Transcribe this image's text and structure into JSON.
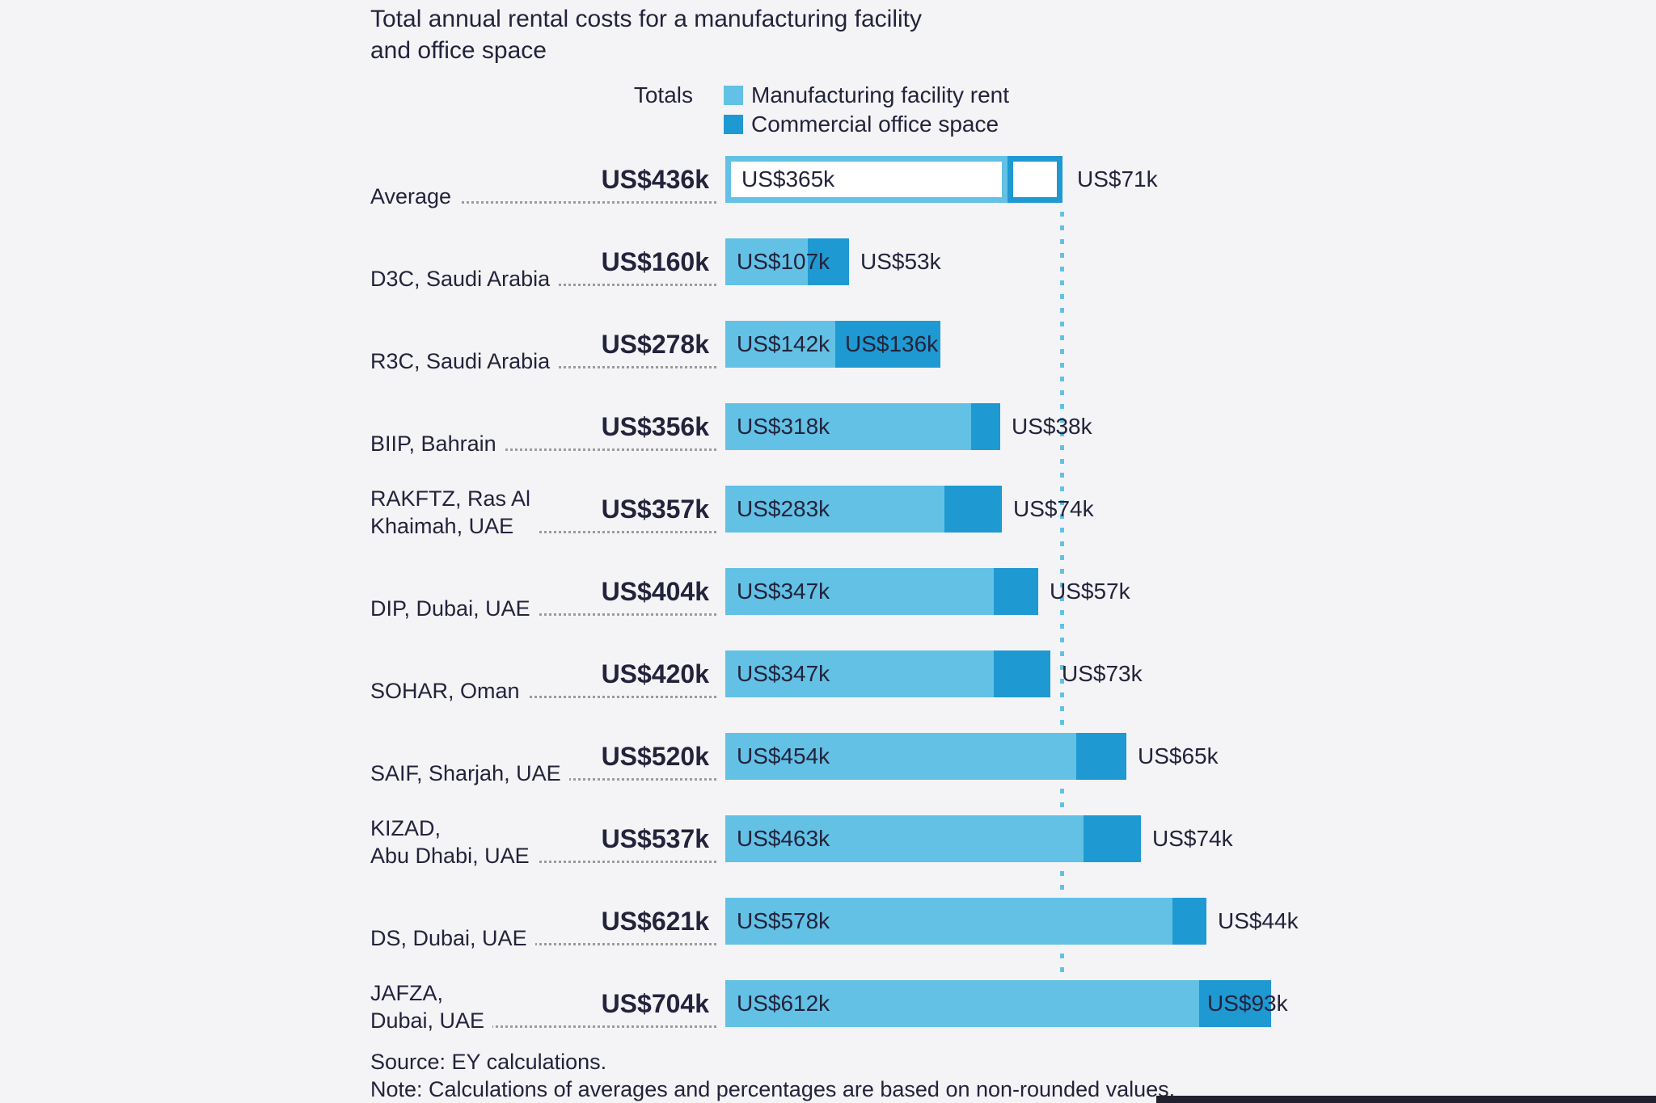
{
  "title": {
    "line1": "Total annual rental costs for a manufacturing facility",
    "line2": "and office space"
  },
  "legend": {
    "totals_label": "Totals",
    "series": [
      {
        "label": "Manufacturing facility rent",
        "color": "#62c1e5"
      },
      {
        "label": "Commercial office space",
        "color": "#1f99d1"
      }
    ]
  },
  "colors": {
    "background": "#f4f4f6",
    "text": "#23233c",
    "manufacturing": "#62c1e5",
    "office": "#1f99d1",
    "leader_dots": "#9b9b9b",
    "average_line": "#62c1e5"
  },
  "chart_data": {
    "type": "bar",
    "orientation": "horizontal",
    "stacked": true,
    "title": "Total annual rental costs for a manufacturing facility and office space",
    "value_unit": "US$ thousands",
    "series_names": [
      "Manufacturing facility rent",
      "Commercial office space"
    ],
    "average_reference_line_at_total": 436,
    "rows": [
      {
        "category_lines": [
          "Average"
        ],
        "style": "outline",
        "total": 436,
        "total_label": "US$436k",
        "manufacturing": 365,
        "manufacturing_label": "US$365k",
        "office": 71,
        "office_label": "US$71k",
        "office_label_placement": "outside"
      },
      {
        "category_lines": [
          "D3C, Saudi Arabia"
        ],
        "style": "solid",
        "total": 160,
        "total_label": "US$160k",
        "manufacturing": 107,
        "manufacturing_label": "US$107k",
        "office": 53,
        "office_label": "US$53k",
        "office_label_placement": "outside"
      },
      {
        "category_lines": [
          "R3C, Saudi Arabia"
        ],
        "style": "solid",
        "total": 278,
        "total_label": "US$278k",
        "manufacturing": 142,
        "manufacturing_label": "US$142k",
        "office": 136,
        "office_label": "US$136k",
        "office_label_placement": "inside"
      },
      {
        "category_lines": [
          "BIIP, Bahrain"
        ],
        "style": "solid",
        "total": 356,
        "total_label": "US$356k",
        "manufacturing": 318,
        "manufacturing_label": "US$318k",
        "office": 38,
        "office_label": "US$38k",
        "office_label_placement": "outside"
      },
      {
        "category_lines": [
          "RAKFTZ, Ras Al",
          "Khaimah, UAE"
        ],
        "style": "solid",
        "total": 357,
        "total_label": "US$357k",
        "manufacturing": 283,
        "manufacturing_label": "US$283k",
        "office": 74,
        "office_label": "US$74k",
        "office_label_placement": "outside"
      },
      {
        "category_lines": [
          "DIP, Dubai, UAE"
        ],
        "style": "solid",
        "total": 404,
        "total_label": "US$404k",
        "manufacturing": 347,
        "manufacturing_label": "US$347k",
        "office": 57,
        "office_label": "US$57k",
        "office_label_placement": "outside"
      },
      {
        "category_lines": [
          "SOHAR, Oman"
        ],
        "style": "solid",
        "total": 420,
        "total_label": "US$420k",
        "manufacturing": 347,
        "manufacturing_label": "US$347k",
        "office": 73,
        "office_label": "US$73k",
        "office_label_placement": "outside"
      },
      {
        "category_lines": [
          "SAIF, Sharjah, UAE"
        ],
        "style": "solid",
        "total": 520,
        "total_label": "US$520k",
        "manufacturing": 454,
        "manufacturing_label": "US$454k",
        "office": 65,
        "office_label": "US$65k",
        "office_label_placement": "outside"
      },
      {
        "category_lines": [
          "KIZAD,",
          "Abu Dhabi, UAE"
        ],
        "style": "solid",
        "total": 537,
        "total_label": "US$537k",
        "manufacturing": 463,
        "manufacturing_label": "US$463k",
        "office": 74,
        "office_label": "US$74k",
        "office_label_placement": "outside"
      },
      {
        "category_lines": [
          "DS, Dubai, UAE"
        ],
        "style": "solid",
        "total": 621,
        "total_label": "US$621k",
        "manufacturing": 578,
        "manufacturing_label": "US$578k",
        "office": 44,
        "office_label": "US$44k",
        "office_label_placement": "outside"
      },
      {
        "category_lines": [
          "JAFZA,",
          "Dubai, UAE"
        ],
        "style": "solid",
        "total": 704,
        "total_label": "US$704k",
        "manufacturing": 612,
        "manufacturing_label": "US$612k",
        "office": 93,
        "office_label": "US$93k",
        "office_label_placement": "overlap"
      }
    ]
  },
  "footer": {
    "source": "Source: EY calculations.",
    "note": "Note: Calculations of averages and percentages are based on non-rounded values."
  }
}
